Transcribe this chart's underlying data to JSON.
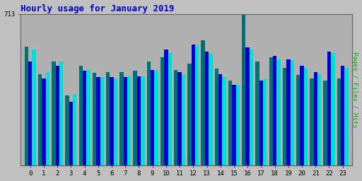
{
  "title": "Hourly usage for January 2019",
  "ylabel_right": "Pages / Files / Hits",
  "ytick_label": "713",
  "hours": [
    0,
    1,
    2,
    3,
    4,
    5,
    6,
    7,
    8,
    9,
    10,
    11,
    12,
    13,
    14,
    15,
    16,
    17,
    18,
    19,
    20,
    21,
    22,
    23
  ],
  "green": [
    560,
    430,
    490,
    330,
    470,
    435,
    440,
    440,
    445,
    490,
    510,
    450,
    480,
    590,
    455,
    400,
    713,
    490,
    510,
    460,
    425,
    410,
    400,
    410
  ],
  "blue": [
    490,
    410,
    470,
    300,
    445,
    415,
    415,
    415,
    420,
    450,
    545,
    440,
    570,
    535,
    430,
    380,
    555,
    400,
    515,
    500,
    470,
    440,
    535,
    470
  ],
  "cyan": [
    545,
    440,
    490,
    335,
    450,
    415,
    410,
    420,
    420,
    445,
    530,
    425,
    565,
    525,
    415,
    380,
    545,
    405,
    500,
    495,
    460,
    430,
    530,
    460
  ],
  "green_color": "#007070",
  "blue_color": "#0000cc",
  "cyan_color": "#00dddd",
  "background_color": "#c0c0c0",
  "plot_bg_color": "#b0b0b0",
  "grid_color": "#888888",
  "title_color": "#0000cc",
  "ylabel_color": "#00aa00",
  "ymax": 713,
  "bar_width": 0.28
}
